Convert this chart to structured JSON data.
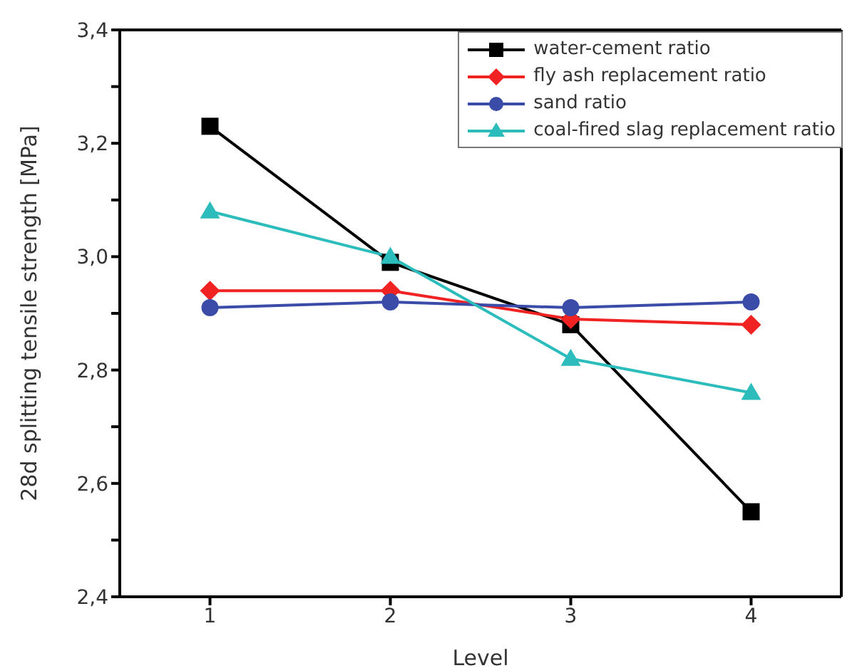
{
  "chart_data": {
    "type": "line",
    "xlabel": "Level",
    "ylabel": "28d splitting tensile strength [MPa]",
    "x": [
      1,
      2,
      3,
      4
    ],
    "xlim": [
      0.5,
      4.5
    ],
    "xticks": [
      1,
      2,
      3,
      4
    ],
    "ylim": [
      2.4,
      3.4
    ],
    "yticks": [
      {
        "value": 2.4,
        "label": "2,4"
      },
      {
        "value": 2.5,
        "label": null
      },
      {
        "value": 2.6,
        "label": "2,6"
      },
      {
        "value": 2.7,
        "label": null
      },
      {
        "value": 2.8,
        "label": "2,8"
      },
      {
        "value": 2.9,
        "label": null
      },
      {
        "value": 3.0,
        "label": "3,0"
      },
      {
        "value": 3.1,
        "label": null
      },
      {
        "value": 3.2,
        "label": "3,2"
      },
      {
        "value": 3.3,
        "label": null
      },
      {
        "value": 3.4,
        "label": "3,4"
      }
    ],
    "grid": false,
    "legend": "top right",
    "line_style": "solid",
    "series": [
      {
        "name": "water-cement ratio",
        "color": "#000000",
        "marker": "square",
        "values": [
          3.23,
          2.99,
          2.88,
          2.55
        ]
      },
      {
        "name": "fly ash replacement ratio",
        "color": "#f02222",
        "marker": "diamond",
        "values": [
          2.94,
          2.94,
          2.89,
          2.88
        ]
      },
      {
        "name": "sand ratio",
        "color": "#3a4ca8",
        "marker": "circle",
        "values": [
          2.91,
          2.92,
          2.91,
          2.92
        ]
      },
      {
        "name": "coal-fired slag replacement ratio",
        "color": "#2cbcbc",
        "marker": "triangle",
        "values": [
          3.08,
          3.0,
          2.82,
          2.76
        ]
      }
    ]
  }
}
